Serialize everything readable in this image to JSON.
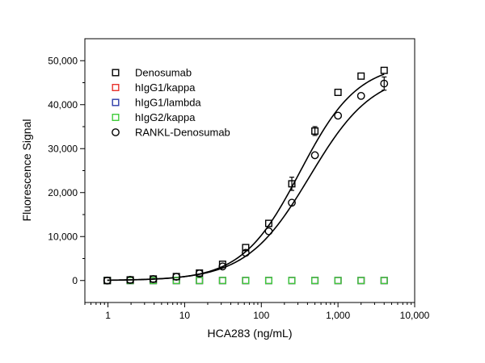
{
  "chart_data": {
    "type": "scatter",
    "xlabel": "HCA283 (ng/mL)",
    "ylabel": "Fluorescence Signal",
    "xscale": "log",
    "xlim": [
      0.5,
      10000
    ],
    "ylim": [
      -5000,
      55000
    ],
    "x_ticks": [
      1,
      10,
      100,
      1000,
      10000
    ],
    "x_tick_labels": [
      "1",
      "10",
      "100",
      "1,000",
      "10,000"
    ],
    "y_ticks": [
      0,
      10000,
      20000,
      30000,
      40000,
      50000
    ],
    "y_tick_labels": [
      "0",
      "10,000",
      "20,000",
      "30,000",
      "40,000",
      "50,000"
    ],
    "grid": false,
    "legend_position": "top-left",
    "x": [
      0.98,
      1.95,
      3.9,
      7.8,
      15.6,
      31.25,
      62.5,
      125,
      250,
      500,
      1000,
      2000,
      4000
    ],
    "series": [
      {
        "name": "Denosumab",
        "marker": "square",
        "color": "#000000",
        "values": [
          0,
          150,
          350,
          900,
          1700,
          3700,
          7500,
          13000,
          22000,
          34000,
          42800,
          46500,
          47800
        ],
        "error": [
          0,
          0,
          0,
          0,
          0,
          0,
          0,
          0,
          1500,
          1000,
          0,
          0,
          0
        ],
        "fit_curve": true
      },
      {
        "name": "hIgG1/kappa",
        "marker": "square",
        "color": "#e8322b",
        "values": [
          0,
          0,
          0,
          0,
          0,
          0,
          0,
          0,
          0,
          0,
          0,
          0,
          0
        ],
        "fit_curve": false
      },
      {
        "name": "hIgG1/lambda",
        "marker": "square",
        "color": "#2b3aa8",
        "values": [
          0,
          0,
          0,
          0,
          0,
          0,
          0,
          0,
          0,
          0,
          0,
          0,
          0
        ],
        "fit_curve": false
      },
      {
        "name": "hIgG2/kappa",
        "marker": "square",
        "color": "#3fcc3a",
        "values": [
          0,
          0,
          0,
          0,
          0,
          0,
          0,
          0,
          0,
          0,
          0,
          0,
          0
        ],
        "fit_curve": false
      },
      {
        "name": "RANKL-Denosumab",
        "marker": "circle",
        "color": "#000000",
        "values": [
          0,
          150,
          350,
          850,
          1600,
          3200,
          6300,
          11200,
          17700,
          28500,
          37500,
          42000,
          44800
        ],
        "error": [
          0,
          0,
          0,
          0,
          0,
          0,
          0,
          0,
          0,
          0,
          0,
          0,
          1500
        ],
        "fit_curve": true
      }
    ]
  }
}
